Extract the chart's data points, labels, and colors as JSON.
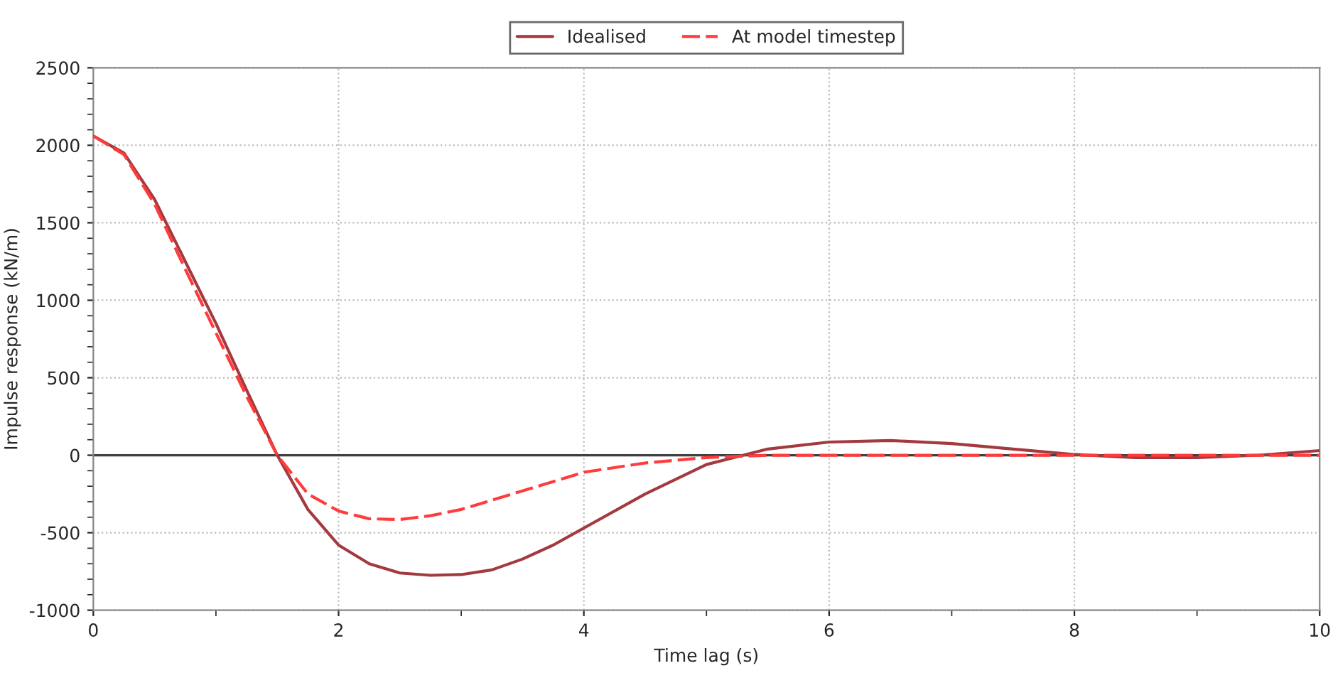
{
  "chart_data": {
    "type": "line",
    "xlabel": "Time lag (s)",
    "ylabel": "Impulse response (kN/m)",
    "xlim": [
      0,
      10
    ],
    "xticks": [
      0,
      2,
      4,
      6,
      8,
      10
    ],
    "ylim": [
      -1000,
      2500
    ],
    "yticks": [
      -1000,
      -500,
      0,
      500,
      1000,
      1500,
      2000,
      2500
    ],
    "grid": true,
    "legend": "top",
    "marker": "none",
    "ref_lines": [
      {
        "axis": "y",
        "value": 0,
        "color": "#404040",
        "line_style": "solid"
      }
    ],
    "series": [
      {
        "name": "Idealised",
        "color": "#a33a3f",
        "line_style": "solid",
        "x": [
          0,
          0.25,
          0.5,
          0.75,
          1.0,
          1.25,
          1.5,
          1.75,
          2.0,
          2.25,
          2.5,
          2.75,
          3.0,
          3.25,
          3.5,
          3.75,
          4.0,
          4.5,
          5.0,
          5.5,
          6.0,
          6.5,
          7.0,
          7.5,
          8.0,
          8.5,
          9.0,
          9.5,
          10
        ],
        "values": [
          2060,
          1950,
          1650,
          1250,
          850,
          420,
          0,
          -350,
          -580,
          -700,
          -760,
          -775,
          -770,
          -740,
          -670,
          -580,
          -470,
          -250,
          -60,
          40,
          85,
          95,
          75,
          40,
          5,
          -15,
          -15,
          0,
          30
        ]
      },
      {
        "name": "At model timestep",
        "color": "#ff3b3b",
        "line_style": "dashed",
        "x": [
          0,
          0.25,
          0.5,
          0.75,
          1.0,
          1.25,
          1.5,
          1.75,
          2.0,
          2.25,
          2.5,
          2.75,
          3.0,
          3.5,
          4.0,
          4.5,
          5.0,
          5.5,
          6.0,
          7.0,
          8.0,
          9.0,
          10
        ],
        "values": [
          2060,
          1940,
          1620,
          1200,
          790,
          380,
          0,
          -250,
          -360,
          -410,
          -415,
          -390,
          -350,
          -230,
          -110,
          -50,
          -15,
          0,
          0,
          0,
          0,
          0,
          0
        ]
      }
    ]
  }
}
